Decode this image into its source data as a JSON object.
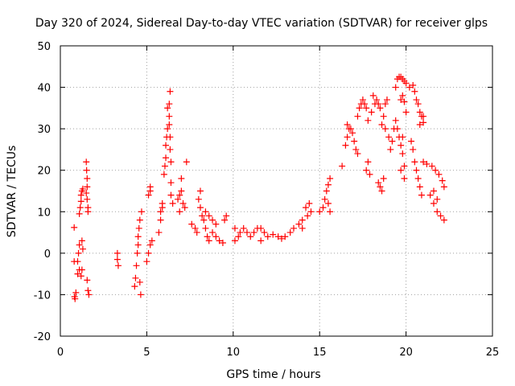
{
  "chart_data": {
    "type": "scatter",
    "title": "Day 320 of 2024, Sidereal Day-to-day VTEC variation (SDTVAR) for receiver glps",
    "xlabel": "GPS time / hours",
    "ylabel": "SDTVAR / TECUs",
    "xlim": [
      0,
      25
    ],
    "ylim": [
      -20,
      50
    ],
    "xticks": [
      0,
      5,
      10,
      15,
      20,
      25
    ],
    "yticks": [
      -20,
      -10,
      0,
      10,
      20,
      30,
      40,
      50
    ],
    "grid": true,
    "marker": "+",
    "color": "#ff0000",
    "series": [
      {
        "name": "SDTVAR",
        "points": [
          [
            0.8,
            6.2
          ],
          [
            0.8,
            -2
          ],
          [
            0.82,
            -10.5
          ],
          [
            0.85,
            -11
          ],
          [
            0.9,
            -9.5
          ],
          [
            1.0,
            -5
          ],
          [
            1.0,
            -2
          ],
          [
            1.05,
            0
          ],
          [
            1.1,
            2
          ],
          [
            1.1,
            -4
          ],
          [
            1.1,
            9.5
          ],
          [
            1.15,
            11
          ],
          [
            1.2,
            12.5
          ],
          [
            1.2,
            14
          ],
          [
            1.25,
            15
          ],
          [
            1.3,
            15.5
          ],
          [
            1.2,
            -5.5
          ],
          [
            1.25,
            -4
          ],
          [
            1.3,
            1
          ],
          [
            1.25,
            3
          ],
          [
            1.5,
            22
          ],
          [
            1.52,
            20
          ],
          [
            1.55,
            18
          ],
          [
            1.55,
            16
          ],
          [
            1.5,
            14.5
          ],
          [
            1.55,
            13
          ],
          [
            1.6,
            11
          ],
          [
            1.6,
            10
          ],
          [
            1.55,
            -6.5
          ],
          [
            1.6,
            -9
          ],
          [
            1.65,
            -10
          ],
          [
            3.3,
            0
          ],
          [
            3.3,
            -1.5
          ],
          [
            3.35,
            -3
          ],
          [
            4.3,
            -8
          ],
          [
            4.35,
            -6
          ],
          [
            4.4,
            -3
          ],
          [
            4.45,
            0
          ],
          [
            4.5,
            2
          ],
          [
            4.5,
            4
          ],
          [
            4.55,
            6
          ],
          [
            4.6,
            8
          ],
          [
            4.7,
            10
          ],
          [
            4.6,
            -7
          ],
          [
            4.65,
            -10
          ],
          [
            5.0,
            -2
          ],
          [
            5.1,
            0
          ],
          [
            5.2,
            2
          ],
          [
            5.3,
            3
          ],
          [
            5.1,
            14
          ],
          [
            5.2,
            15
          ],
          [
            5.2,
            16
          ],
          [
            5.7,
            5
          ],
          [
            5.8,
            8
          ],
          [
            5.8,
            10
          ],
          [
            5.9,
            11
          ],
          [
            5.9,
            12
          ],
          [
            6.0,
            19
          ],
          [
            6.05,
            21
          ],
          [
            6.1,
            23
          ],
          [
            6.1,
            26
          ],
          [
            6.15,
            28
          ],
          [
            6.2,
            30
          ],
          [
            6.2,
            35
          ],
          [
            6.3,
            33
          ],
          [
            6.3,
            31
          ],
          [
            6.35,
            28
          ],
          [
            6.35,
            25
          ],
          [
            6.3,
            36
          ],
          [
            6.35,
            39
          ],
          [
            6.4,
            22
          ],
          [
            6.4,
            17
          ],
          [
            6.4,
            14
          ],
          [
            6.5,
            12
          ],
          [
            6.8,
            13
          ],
          [
            6.9,
            14
          ],
          [
            7.0,
            15
          ],
          [
            7.0,
            18
          ],
          [
            7.1,
            12
          ],
          [
            7.2,
            11
          ],
          [
            6.9,
            10
          ],
          [
            7.3,
            22
          ],
          [
            7.6,
            7
          ],
          [
            7.8,
            6
          ],
          [
            7.9,
            5
          ],
          [
            8.0,
            13
          ],
          [
            8.1,
            15
          ],
          [
            8.1,
            11
          ],
          [
            8.2,
            9
          ],
          [
            8.3,
            8
          ],
          [
            8.4,
            6
          ],
          [
            8.5,
            4
          ],
          [
            8.6,
            3
          ],
          [
            8.4,
            10
          ],
          [
            8.6,
            9
          ],
          [
            8.8,
            8
          ],
          [
            8.8,
            5
          ],
          [
            9.0,
            4
          ],
          [
            9.2,
            3
          ],
          [
            9.4,
            2.5
          ],
          [
            9.5,
            8
          ],
          [
            9.6,
            9
          ],
          [
            9.0,
            7
          ],
          [
            10.1,
            6
          ],
          [
            10.1,
            3
          ],
          [
            10.3,
            4
          ],
          [
            10.4,
            5
          ],
          [
            10.6,
            6
          ],
          [
            10.8,
            5
          ],
          [
            11.0,
            4
          ],
          [
            11.2,
            5
          ],
          [
            11.4,
            6
          ],
          [
            11.6,
            6
          ],
          [
            11.8,
            5
          ],
          [
            11.6,
            3
          ],
          [
            12.0,
            4
          ],
          [
            12.3,
            4.5
          ],
          [
            12.6,
            4
          ],
          [
            12.8,
            3.5
          ],
          [
            13.0,
            4
          ],
          [
            13.3,
            5
          ],
          [
            13.5,
            6
          ],
          [
            13.8,
            7
          ],
          [
            14.0,
            8
          ],
          [
            14.3,
            9
          ],
          [
            14.5,
            10
          ],
          [
            14.2,
            11
          ],
          [
            14.4,
            12
          ],
          [
            14.0,
            6
          ],
          [
            15.0,
            10
          ],
          [
            15.2,
            11
          ],
          [
            15.3,
            13
          ],
          [
            15.4,
            15
          ],
          [
            15.5,
            16.5
          ],
          [
            15.6,
            18
          ],
          [
            15.5,
            12
          ],
          [
            15.6,
            10
          ],
          [
            16.3,
            21
          ],
          [
            16.5,
            26
          ],
          [
            16.6,
            28
          ],
          [
            16.7,
            30
          ],
          [
            16.8,
            30
          ],
          [
            16.9,
            29
          ],
          [
            17.0,
            27
          ],
          [
            17.1,
            25
          ],
          [
            17.2,
            24
          ],
          [
            16.6,
            31
          ],
          [
            17.2,
            33
          ],
          [
            17.3,
            35
          ],
          [
            17.4,
            36
          ],
          [
            17.5,
            37
          ],
          [
            17.6,
            36
          ],
          [
            17.7,
            35
          ],
          [
            17.8,
            32
          ],
          [
            17.8,
            22
          ],
          [
            17.7,
            20
          ],
          [
            17.9,
            19
          ],
          [
            18.0,
            34
          ],
          [
            18.1,
            38
          ],
          [
            18.2,
            36
          ],
          [
            18.3,
            37
          ],
          [
            18.4,
            36
          ],
          [
            18.5,
            35
          ],
          [
            18.6,
            31
          ],
          [
            18.4,
            17
          ],
          [
            18.5,
            16
          ],
          [
            18.6,
            15
          ],
          [
            18.7,
            18
          ],
          [
            18.7,
            33
          ],
          [
            18.8,
            36
          ],
          [
            18.9,
            37
          ],
          [
            18.8,
            30
          ],
          [
            19.0,
            28
          ],
          [
            19.1,
            25
          ],
          [
            19.2,
            27
          ],
          [
            19.3,
            30
          ],
          [
            19.4,
            32
          ],
          [
            19.5,
            30
          ],
          [
            19.6,
            28
          ],
          [
            19.7,
            26
          ],
          [
            19.8,
            24
          ],
          [
            19.9,
            21
          ],
          [
            19.9,
            18
          ],
          [
            19.8,
            28
          ],
          [
            19.7,
            20
          ],
          [
            19.4,
            40
          ],
          [
            19.5,
            42
          ],
          [
            19.6,
            42.5
          ],
          [
            19.7,
            42.5
          ],
          [
            19.8,
            42
          ],
          [
            19.9,
            41.5
          ],
          [
            20.0,
            41
          ],
          [
            19.7,
            37
          ],
          [
            19.8,
            38
          ],
          [
            19.9,
            36.5
          ],
          [
            20.0,
            34
          ],
          [
            20.2,
            40
          ],
          [
            20.4,
            40.5
          ],
          [
            20.5,
            39
          ],
          [
            20.6,
            37
          ],
          [
            20.7,
            36
          ],
          [
            20.8,
            34
          ],
          [
            20.9,
            33
          ],
          [
            20.8,
            31
          ],
          [
            21.0,
            33
          ],
          [
            21.0,
            31.5
          ],
          [
            20.3,
            27
          ],
          [
            20.4,
            25
          ],
          [
            20.5,
            22
          ],
          [
            20.6,
            20
          ],
          [
            20.7,
            18
          ],
          [
            20.8,
            16
          ],
          [
            20.9,
            14
          ],
          [
            21.0,
            22
          ],
          [
            21.2,
            21.5
          ],
          [
            21.5,
            21
          ],
          [
            21.7,
            20
          ],
          [
            21.9,
            19
          ],
          [
            22.1,
            17.5
          ],
          [
            22.2,
            16
          ],
          [
            21.4,
            14
          ],
          [
            21.6,
            12
          ],
          [
            21.8,
            10
          ],
          [
            22.0,
            9
          ],
          [
            22.2,
            8
          ],
          [
            21.6,
            15
          ],
          [
            21.8,
            13
          ]
        ]
      }
    ]
  }
}
